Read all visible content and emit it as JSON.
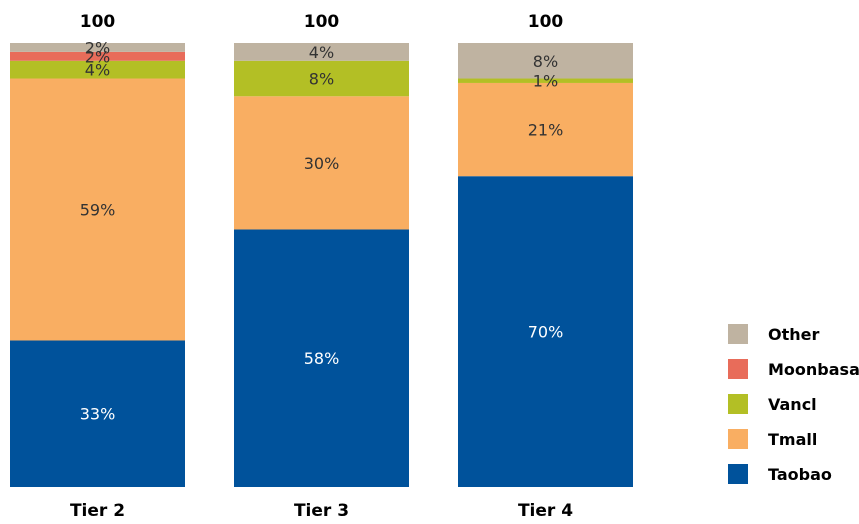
{
  "chart_data": {
    "type": "bar",
    "stacked": true,
    "categories": [
      "Tier 2",
      "Tier 3",
      "Tier 4"
    ],
    "totals": [
      "100",
      "100",
      "100"
    ],
    "series": [
      {
        "name": "Taobao",
        "values": [
          33,
          58,
          70
        ],
        "labels": [
          "33%",
          "58%",
          "70%"
        ],
        "color": "#00529b",
        "label_color": "#ffffff"
      },
      {
        "name": "Tmall",
        "values": [
          59,
          30,
          21
        ],
        "labels": [
          "59%",
          "30%",
          "21%"
        ],
        "color": "#f9ae62",
        "label_color": "#333333"
      },
      {
        "name": "Vancl",
        "values": [
          4,
          8,
          1
        ],
        "labels": [
          "4%",
          "8%",
          "1%"
        ],
        "color": "#b3bf25",
        "label_color": "#333333"
      },
      {
        "name": "Moonbasa",
        "values": [
          2,
          0,
          0
        ],
        "labels": [
          "2%",
          "",
          ""
        ],
        "color": "#e86c5a",
        "label_color": "#333333"
      },
      {
        "name": "Other",
        "values": [
          2,
          4,
          8
        ],
        "labels": [
          "2%",
          "4%",
          "8%"
        ],
        "color": "#bfb3a1",
        "label_color": "#333333"
      }
    ],
    "legend_order": [
      "Other",
      "Moonbasa",
      "Vancl",
      "Tmall",
      "Taobao"
    ],
    "legend_position": "right",
    "ylim": [
      0,
      100
    ],
    "grid": false
  }
}
